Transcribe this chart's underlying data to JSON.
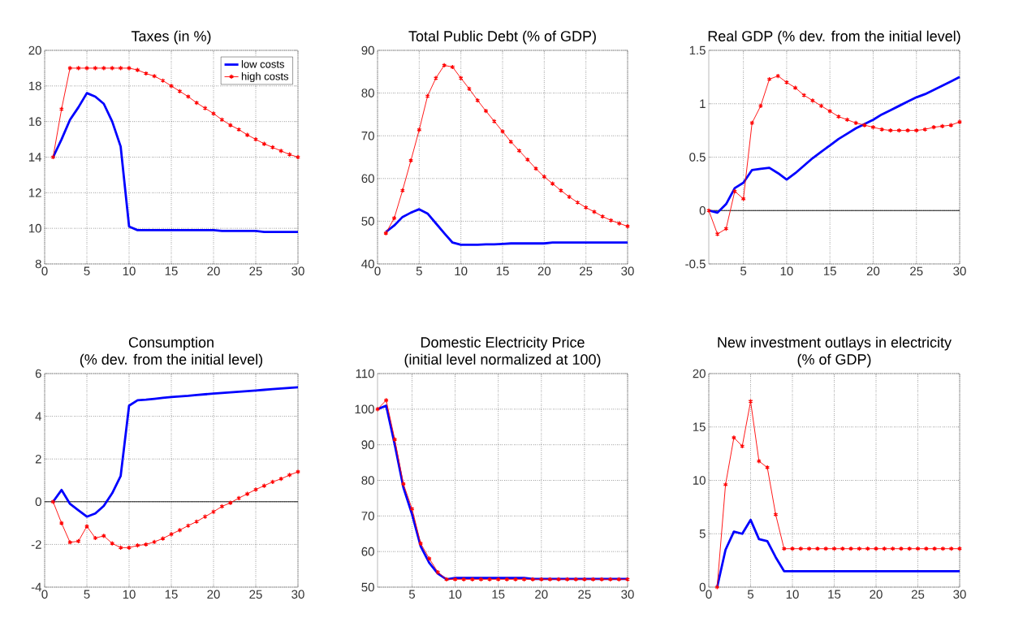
{
  "chart_data": [
    {
      "type": "line",
      "title": "Taxes (in %)",
      "x": [
        1,
        2,
        3,
        4,
        5,
        6,
        7,
        8,
        9,
        10,
        11,
        12,
        13,
        14,
        15,
        16,
        17,
        18,
        19,
        20,
        21,
        22,
        23,
        24,
        25,
        26,
        27,
        28,
        29,
        30
      ],
      "xlim": [
        0,
        30
      ],
      "xticks": [
        0,
        5,
        10,
        15,
        20,
        25,
        30
      ],
      "ylim": [
        8,
        20
      ],
      "yticks": [
        8,
        10,
        12,
        14,
        16,
        18,
        20
      ],
      "grid": true,
      "legend": "top right",
      "series": [
        {
          "name": "low costs",
          "color": "#0000ff",
          "marker": "none",
          "values": [
            14,
            15,
            16.1,
            16.8,
            17.6,
            17.4,
            17.0,
            16.0,
            14.6,
            10.1,
            9.9,
            9.9,
            9.9,
            9.9,
            9.9,
            9.9,
            9.9,
            9.9,
            9.9,
            9.9,
            9.85,
            9.85,
            9.85,
            9.85,
            9.85,
            9.8,
            9.8,
            9.8,
            9.8,
            9.8
          ]
        },
        {
          "name": "high costs",
          "color": "#ff0000",
          "marker": "cross",
          "values": [
            14,
            16.7,
            19,
            19,
            19,
            19,
            19,
            19,
            19,
            19,
            18.9,
            18.7,
            18.55,
            18.3,
            18.0,
            17.7,
            17.4,
            17.05,
            16.75,
            16.45,
            16.1,
            15.8,
            15.55,
            15.25,
            15.0,
            14.75,
            14.55,
            14.35,
            14.15,
            14.0
          ]
        }
      ]
    },
    {
      "type": "line",
      "title": "Total Public Debt (% of GDP)",
      "x": [
        1,
        2,
        3,
        4,
        5,
        6,
        7,
        8,
        9,
        10,
        11,
        12,
        13,
        14,
        15,
        16,
        17,
        18,
        19,
        20,
        21,
        22,
        23,
        24,
        25,
        26,
        27,
        28,
        29,
        30
      ],
      "xlim": [
        0,
        30
      ],
      "xticks": [
        0,
        5,
        10,
        15,
        20,
        25,
        30
      ],
      "ylim": [
        40,
        90
      ],
      "yticks": [
        40,
        50,
        60,
        70,
        80,
        90
      ],
      "grid": true,
      "series": [
        {
          "color": "#0000ff",
          "marker": "none",
          "values": [
            47.5,
            49,
            51,
            52,
            52.8,
            51.8,
            49.5,
            47.2,
            45,
            44.5,
            44.5,
            44.5,
            44.6,
            44.6,
            44.7,
            44.8,
            44.8,
            44.8,
            44.8,
            44.8,
            45,
            45,
            45,
            45,
            45,
            45,
            45,
            45,
            45,
            45
          ]
        },
        {
          "color": "#ff0000",
          "marker": "cross",
          "values": [
            47.2,
            50.7,
            57.2,
            64.2,
            71.4,
            79.3,
            83.5,
            86.5,
            86.1,
            83.5,
            81.0,
            78.3,
            75.8,
            73.4,
            71.0,
            68.6,
            66.5,
            64.4,
            62.3,
            60.4,
            58.8,
            57.2,
            55.7,
            54.4,
            53.2,
            52.2,
            51.1,
            50.2,
            49.5,
            48.8
          ]
        }
      ]
    },
    {
      "type": "line",
      "title": "Real GDP (% dev. from the initial level)",
      "x": [
        1,
        2,
        3,
        4,
        5,
        6,
        7,
        8,
        9,
        10,
        11,
        12,
        13,
        14,
        15,
        16,
        17,
        18,
        19,
        20,
        21,
        22,
        23,
        24,
        25,
        26,
        27,
        28,
        29,
        30
      ],
      "xlim": [
        1,
        30
      ],
      "xticks": [
        5,
        10,
        15,
        20,
        25,
        30
      ],
      "ylim": [
        -0.5,
        1.5
      ],
      "yticks": [
        -0.5,
        0,
        0.5,
        1,
        1.5
      ],
      "grid": true,
      "ref_lines": [
        {
          "axis": "y",
          "value": 0,
          "color": "#000000"
        }
      ],
      "series": [
        {
          "color": "#0000ff",
          "marker": "none",
          "values": [
            0,
            -0.02,
            0.06,
            0.21,
            0.26,
            0.38,
            0.39,
            0.4,
            0.35,
            0.29,
            0.35,
            0.42,
            0.49,
            0.55,
            0.61,
            0.67,
            0.72,
            0.77,
            0.81,
            0.85,
            0.9,
            0.94,
            0.98,
            1.02,
            1.06,
            1.09,
            1.13,
            1.17,
            1.21,
            1.25
          ]
        },
        {
          "color": "#ff0000",
          "marker": "cross",
          "values": [
            0,
            -0.22,
            -0.17,
            0.18,
            0.11,
            0.82,
            0.98,
            1.23,
            1.26,
            1.2,
            1.15,
            1.08,
            1.03,
            0.98,
            0.93,
            0.88,
            0.85,
            0.82,
            0.8,
            0.78,
            0.76,
            0.75,
            0.75,
            0.75,
            0.75,
            0.76,
            0.78,
            0.79,
            0.8,
            0.83
          ]
        }
      ]
    },
    {
      "type": "line",
      "title": "Consumption",
      "subtitle": "(% dev. from the initial level)",
      "x": [
        1,
        2,
        3,
        4,
        5,
        6,
        7,
        8,
        9,
        10,
        11,
        12,
        13,
        14,
        15,
        16,
        17,
        18,
        19,
        20,
        21,
        22,
        23,
        24,
        25,
        26,
        27,
        28,
        29,
        30
      ],
      "xlim": [
        0,
        30
      ],
      "xticks": [
        0,
        5,
        10,
        15,
        20,
        25,
        30
      ],
      "ylim": [
        -4,
        6
      ],
      "yticks": [
        -4,
        -2,
        0,
        2,
        4,
        6
      ],
      "grid": true,
      "ref_lines": [
        {
          "axis": "y",
          "value": 0,
          "color": "#000000"
        }
      ],
      "series": [
        {
          "color": "#0000ff",
          "marker": "none",
          "values": [
            0,
            0.55,
            -0.1,
            -0.4,
            -0.7,
            -0.55,
            -0.2,
            0.4,
            1.2,
            4.5,
            4.75,
            4.78,
            4.82,
            4.86,
            4.9,
            4.93,
            4.96,
            5.0,
            5.03,
            5.06,
            5.09,
            5.12,
            5.15,
            5.18,
            5.21,
            5.24,
            5.27,
            5.3,
            5.33,
            5.36
          ]
        },
        {
          "color": "#ff0000",
          "marker": "cross",
          "values": [
            0,
            -1.0,
            -1.9,
            -1.85,
            -1.15,
            -1.7,
            -1.6,
            -1.95,
            -2.15,
            -2.15,
            -2.05,
            -2.0,
            -1.88,
            -1.72,
            -1.52,
            -1.33,
            -1.12,
            -0.93,
            -0.7,
            -0.47,
            -0.22,
            -0.05,
            0.17,
            0.37,
            0.57,
            0.75,
            0.93,
            1.07,
            1.25,
            1.4
          ]
        }
      ]
    },
    {
      "type": "line",
      "title": "Domestic Electricity Price",
      "subtitle": "(initial level normalized at 100)",
      "x": [
        1,
        2,
        3,
        4,
        5,
        6,
        7,
        8,
        9,
        10,
        11,
        12,
        13,
        14,
        15,
        16,
        17,
        18,
        19,
        20,
        21,
        22,
        23,
        24,
        25,
        26,
        27,
        28,
        29,
        30
      ],
      "xlim": [
        1,
        30
      ],
      "xticks": [
        5,
        10,
        15,
        20,
        25,
        30
      ],
      "ylim": [
        50,
        110
      ],
      "yticks": [
        50,
        60,
        70,
        80,
        90,
        100,
        110
      ],
      "grid": true,
      "series": [
        {
          "color": "#0000ff",
          "marker": "none",
          "values": [
            100,
            101,
            90,
            78,
            70.5,
            61.5,
            56.8,
            53.8,
            52.2,
            52.6,
            52.6,
            52.6,
            52.6,
            52.6,
            52.6,
            52.6,
            52.6,
            52.6,
            52.3,
            52.3,
            52.3,
            52.3,
            52.3,
            52.3,
            52.3,
            52.3,
            52.3,
            52.3,
            52.3,
            52.3
          ]
        },
        {
          "color": "#ff0000",
          "marker": "cross",
          "values": [
            100,
            102.5,
            91.5,
            79,
            72,
            62.3,
            58,
            54.2,
            52.2,
            52.2,
            52.2,
            52.2,
            52.2,
            52.2,
            52.2,
            52.2,
            52.2,
            52.2,
            52.2,
            52.2,
            52.2,
            52.2,
            52.2,
            52.2,
            52.2,
            52.2,
            52.2,
            52.2,
            52.2,
            52.2
          ]
        }
      ]
    },
    {
      "type": "line",
      "title": "New investment outlays in electricity",
      "subtitle": "(% of GDP)",
      "x": [
        1,
        2,
        3,
        4,
        5,
        6,
        7,
        8,
        9,
        10,
        11,
        12,
        13,
        14,
        15,
        16,
        17,
        18,
        19,
        20,
        21,
        22,
        23,
        24,
        25,
        26,
        27,
        28,
        29,
        30
      ],
      "xlim": [
        0,
        30
      ],
      "xticks": [
        0,
        5,
        10,
        15,
        20,
        25,
        30
      ],
      "ylim": [
        0,
        20
      ],
      "yticks": [
        0,
        5,
        10,
        15,
        20
      ],
      "grid": true,
      "series": [
        {
          "color": "#0000ff",
          "marker": "none",
          "values": [
            0,
            3.5,
            5.2,
            5,
            6.3,
            4.5,
            4.3,
            2.8,
            1.5,
            1.5,
            1.5,
            1.5,
            1.5,
            1.5,
            1.5,
            1.5,
            1.5,
            1.5,
            1.5,
            1.5,
            1.5,
            1.5,
            1.5,
            1.5,
            1.5,
            1.5,
            1.5,
            1.5,
            1.5,
            1.5
          ]
        },
        {
          "color": "#ff0000",
          "marker": "cross",
          "values": [
            0,
            9.6,
            14,
            13.2,
            17.4,
            11.8,
            11.2,
            6.8,
            3.6,
            3.6,
            3.6,
            3.6,
            3.6,
            3.6,
            3.6,
            3.6,
            3.6,
            3.6,
            3.6,
            3.6,
            3.6,
            3.6,
            3.6,
            3.6,
            3.6,
            3.6,
            3.6,
            3.6,
            3.6,
            3.6
          ]
        }
      ]
    }
  ]
}
